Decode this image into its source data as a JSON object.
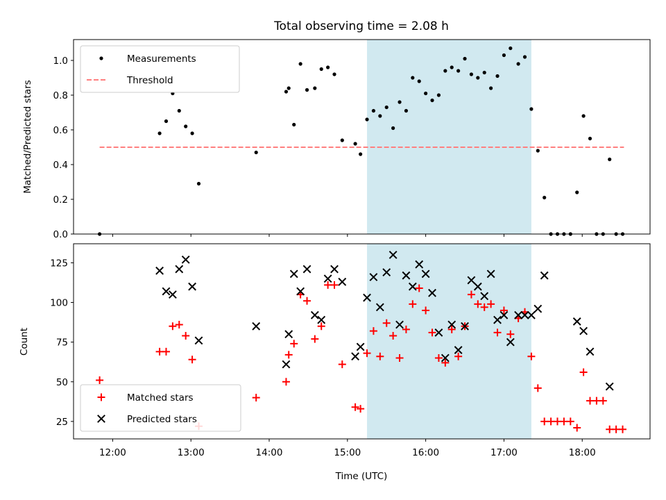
{
  "chart_data": [
    {
      "type": "scatter",
      "title": "Total observing time = 2.08 h",
      "xlabel": "",
      "ylabel": "Matched/Predicted stars",
      "xlim": [
        "11:30",
        "18:52"
      ],
      "ylim": [
        0,
        1.12
      ],
      "yticks": [
        "0.0",
        "0.2",
        "0.4",
        "0.6",
        "0.8",
        "1.0"
      ],
      "xticks": [
        "12:00",
        "13:00",
        "14:00",
        "15:00",
        "16:00",
        "17:00",
        "18:00"
      ],
      "grid": false,
      "legend_position": "top-left",
      "highlight_span": {
        "start": "15:15",
        "end": "17:21"
      },
      "highlight_color": "#d1e9f0",
      "threshold": {
        "name": "Threshold",
        "y": 0.5,
        "x_start": "11:50",
        "x_end": "18:32",
        "color": "#ff7f7f"
      },
      "series": [
        {
          "name": "Measurements",
          "marker": "dot",
          "color": "#000000",
          "points": [
            [
              "11:50",
              0.0
            ],
            [
              "12:36",
              0.58
            ],
            [
              "12:41",
              0.65
            ],
            [
              "12:46",
              0.81
            ],
            [
              "12:51",
              0.71
            ],
            [
              "12:56",
              0.62
            ],
            [
              "13:01",
              0.58
            ],
            [
              "13:06",
              0.29
            ],
            [
              "13:50",
              0.47
            ],
            [
              "14:13",
              0.82
            ],
            [
              "14:15",
              0.84
            ],
            [
              "14:19",
              0.63
            ],
            [
              "14:24",
              0.98
            ],
            [
              "14:29",
              0.83
            ],
            [
              "14:35",
              0.84
            ],
            [
              "14:40",
              0.95
            ],
            [
              "14:45",
              0.96
            ],
            [
              "14:50",
              0.92
            ],
            [
              "14:56",
              0.54
            ],
            [
              "15:06",
              0.52
            ],
            [
              "15:10",
              0.46
            ],
            [
              "15:15",
              0.66
            ],
            [
              "15:20",
              0.71
            ],
            [
              "15:25",
              0.68
            ],
            [
              "15:30",
              0.73
            ],
            [
              "15:35",
              0.61
            ],
            [
              "15:40",
              0.76
            ],
            [
              "15:45",
              0.71
            ],
            [
              "15:50",
              0.9
            ],
            [
              "15:55",
              0.88
            ],
            [
              "16:00",
              0.81
            ],
            [
              "16:05",
              0.77
            ],
            [
              "16:10",
              0.8
            ],
            [
              "16:15",
              0.94
            ],
            [
              "16:20",
              0.96
            ],
            [
              "16:25",
              0.94
            ],
            [
              "16:30",
              1.01
            ],
            [
              "16:35",
              0.92
            ],
            [
              "16:40",
              0.9
            ],
            [
              "16:45",
              0.93
            ],
            [
              "16:50",
              0.84
            ],
            [
              "16:55",
              0.91
            ],
            [
              "17:00",
              1.03
            ],
            [
              "17:05",
              1.07
            ],
            [
              "17:11",
              0.98
            ],
            [
              "17:16",
              1.02
            ],
            [
              "17:21",
              0.72
            ],
            [
              "17:26",
              0.48
            ],
            [
              "17:31",
              0.21
            ],
            [
              "17:36",
              0.0
            ],
            [
              "17:41",
              0.0
            ],
            [
              "17:46",
              0.0
            ],
            [
              "17:51",
              0.0
            ],
            [
              "17:56",
              0.24
            ],
            [
              "18:01",
              0.68
            ],
            [
              "18:06",
              0.55
            ],
            [
              "18:11",
              0.0
            ],
            [
              "18:16",
              0.0
            ],
            [
              "18:21",
              0.43
            ],
            [
              "18:26",
              0.0
            ],
            [
              "18:31",
              0.0
            ]
          ]
        }
      ]
    },
    {
      "type": "scatter",
      "title": "",
      "xlabel": "Time (UTC)",
      "ylabel": "Count",
      "xlim": [
        "11:30",
        "18:52"
      ],
      "ylim": [
        14,
        137
      ],
      "yticks": [
        "25",
        "50",
        "75",
        "100",
        "125"
      ],
      "xticks": [
        "12:00",
        "13:00",
        "14:00",
        "15:00",
        "16:00",
        "17:00",
        "18:00"
      ],
      "grid": false,
      "legend_position": "bottom-left",
      "highlight_span": {
        "start": "15:15",
        "end": "17:21"
      },
      "highlight_color": "#d1e9f0",
      "series": [
        {
          "name": "Matched stars",
          "marker": "plus",
          "color": "#ff0000",
          "points": [
            [
              "11:50",
              51
            ],
            [
              "12:36",
              69
            ],
            [
              "12:41",
              69
            ],
            [
              "12:46",
              85
            ],
            [
              "12:51",
              86
            ],
            [
              "12:56",
              79
            ],
            [
              "13:01",
              64
            ],
            [
              "13:06",
              22
            ],
            [
              "13:50",
              40
            ],
            [
              "14:13",
              50
            ],
            [
              "14:15",
              67
            ],
            [
              "14:19",
              74
            ],
            [
              "14:24",
              105
            ],
            [
              "14:29",
              101
            ],
            [
              "14:35",
              77
            ],
            [
              "14:40",
              85
            ],
            [
              "14:45",
              111
            ],
            [
              "14:50",
              111
            ],
            [
              "14:56",
              61
            ],
            [
              "15:06",
              34
            ],
            [
              "15:10",
              33
            ],
            [
              "15:15",
              68
            ],
            [
              "15:20",
              82
            ],
            [
              "15:25",
              66
            ],
            [
              "15:30",
              87
            ],
            [
              "15:35",
              79
            ],
            [
              "15:40",
              65
            ],
            [
              "15:45",
              83
            ],
            [
              "15:50",
              99
            ],
            [
              "15:55",
              109
            ],
            [
              "16:00",
              95
            ],
            [
              "16:05",
              81
            ],
            [
              "16:10",
              65
            ],
            [
              "16:15",
              62
            ],
            [
              "16:20",
              83
            ],
            [
              "16:25",
              66
            ],
            [
              "16:30",
              85
            ],
            [
              "16:35",
              105
            ],
            [
              "16:40",
              99
            ],
            [
              "16:45",
              97
            ],
            [
              "16:50",
              99
            ],
            [
              "16:55",
              81
            ],
            [
              "17:00",
              95
            ],
            [
              "17:05",
              80
            ],
            [
              "17:11",
              90
            ],
            [
              "17:16",
              94
            ],
            [
              "17:21",
              66
            ],
            [
              "17:26",
              46
            ],
            [
              "17:31",
              25
            ],
            [
              "17:36",
              25
            ],
            [
              "17:41",
              25
            ],
            [
              "17:46",
              25
            ],
            [
              "17:51",
              25
            ],
            [
              "17:56",
              21
            ],
            [
              "18:01",
              56
            ],
            [
              "18:06",
              38
            ],
            [
              "18:11",
              38
            ],
            [
              "18:16",
              38
            ],
            [
              "18:21",
              20
            ],
            [
              "18:26",
              20
            ],
            [
              "18:31",
              20
            ]
          ]
        },
        {
          "name": "Predicted stars",
          "marker": "x",
          "color": "#000000",
          "points": [
            [
              "12:36",
              120
            ],
            [
              "12:41",
              107
            ],
            [
              "12:46",
              105
            ],
            [
              "12:51",
              121
            ],
            [
              "12:56",
              127
            ],
            [
              "13:01",
              110
            ],
            [
              "13:06",
              76
            ],
            [
              "13:50",
              85
            ],
            [
              "14:13",
              61
            ],
            [
              "14:15",
              80
            ],
            [
              "14:19",
              118
            ],
            [
              "14:24",
              107
            ],
            [
              "14:29",
              121
            ],
            [
              "14:35",
              92
            ],
            [
              "14:40",
              89
            ],
            [
              "14:45",
              115
            ],
            [
              "14:50",
              121
            ],
            [
              "14:56",
              113
            ],
            [
              "15:06",
              66
            ],
            [
              "15:10",
              72
            ],
            [
              "15:15",
              103
            ],
            [
              "15:20",
              116
            ],
            [
              "15:25",
              97
            ],
            [
              "15:30",
              119
            ],
            [
              "15:35",
              130
            ],
            [
              "15:40",
              86
            ],
            [
              "15:45",
              117
            ],
            [
              "15:50",
              110
            ],
            [
              "15:55",
              124
            ],
            [
              "16:00",
              118
            ],
            [
              "16:05",
              106
            ],
            [
              "16:10",
              81
            ],
            [
              "16:15",
              65
            ],
            [
              "16:20",
              86
            ],
            [
              "16:25",
              70
            ],
            [
              "16:30",
              85
            ],
            [
              "16:35",
              114
            ],
            [
              "16:40",
              110
            ],
            [
              "16:45",
              104
            ],
            [
              "16:50",
              118
            ],
            [
              "16:55",
              89
            ],
            [
              "17:00",
              92
            ],
            [
              "17:05",
              75
            ],
            [
              "17:11",
              92
            ],
            [
              "17:16",
              92
            ],
            [
              "17:21",
              92
            ],
            [
              "17:26",
              96
            ],
            [
              "17:31",
              117
            ],
            [
              "17:56",
              88
            ],
            [
              "18:01",
              82
            ],
            [
              "18:06",
              69
            ],
            [
              "18:21",
              47
            ]
          ]
        }
      ]
    }
  ]
}
